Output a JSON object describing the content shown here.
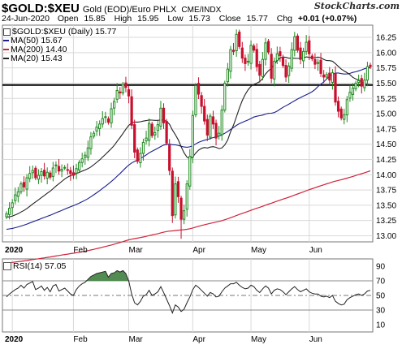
{
  "header": {
    "symbol": "$GOLD:$XEU",
    "description": "Gold (EOD)/Euro PHLX",
    "source": "CME/INDX",
    "brand": "StockCharts.com",
    "date": "24-Jun-2020",
    "open_label": "Open",
    "open_value": "15.85",
    "high_label": "High",
    "high_value": "15.95",
    "low_label": "Low",
    "low_value": "15.73",
    "close_label": "Close",
    "close_value": "15.77",
    "chg_label": "Chg",
    "chg_value": "+0.01 (+0.07%)"
  },
  "legend": {
    "price": "$GOLD:$XEU (Daily) 15.77",
    "ma50": "MA(50) 15.67",
    "ma200": "MA(200) 14.40",
    "ma20": "MA(20) 15.43",
    "rsi": "RSI(14) 57.05"
  },
  "colors": {
    "up": "#1e8a1e",
    "down": "#c8102e",
    "ma50": "#1a1f8a",
    "ma200": "#d0223a",
    "ma20": "#222222",
    "rsi_fill": "#3f7f3f",
    "grid": "#d9d9d9"
  },
  "chart_data": [
    {
      "type": "candlestick",
      "title": "$GOLD:$XEU",
      "x_labels": [
        "2020",
        "Feb",
        "Mar",
        "Apr",
        "May",
        "Jun"
      ],
      "y_ticks": [
        "16.25",
        "16.00",
        "15.75",
        "15.50",
        "15.25",
        "15.00",
        "14.75",
        "14.50",
        "14.25",
        "14.00",
        "13.75",
        "13.50",
        "13.25",
        "13.00"
      ],
      "ylim": [
        12.9,
        16.45
      ],
      "horizontal_line": 15.47,
      "closes": [
        13.36,
        13.45,
        13.54,
        13.67,
        13.72,
        13.85,
        13.8,
        13.95,
        14.02,
        14.07,
        13.95,
        13.99,
        14.05,
        13.98,
        14.04,
        13.96,
        14.11,
        14.16,
        14.06,
        14.09,
        14.12,
        14.08,
        14.02,
        13.99,
        14.1,
        14.2,
        14.26,
        14.32,
        14.44,
        14.62,
        14.68,
        14.78,
        14.83,
        14.92,
        14.95,
        14.86,
        15.08,
        15.2,
        15.38,
        15.34,
        15.48,
        15.43,
        15.29,
        14.81,
        14.37,
        14.22,
        14.35,
        14.53,
        14.6,
        14.84,
        14.64,
        14.69,
        14.82,
        15.09,
        14.85,
        14.52,
        14.07,
        13.33,
        13.85,
        13.64,
        13.27,
        13.41,
        13.85,
        14.3,
        14.97,
        15.46,
        15.32,
        15.12,
        14.88,
        14.65,
        14.96,
        14.83,
        14.6,
        14.68,
        15.06,
        15.5,
        15.73,
        16.05,
        16.02,
        16.3,
        16.1,
        15.91,
        15.82,
        15.86,
        16.12,
        16.04,
        15.77,
        15.63,
        15.89,
        16.16,
        16.01,
        15.58,
        15.86,
        15.98,
        15.95,
        15.79,
        15.6,
        15.78,
        16.05,
        16.26,
        16.04,
        15.89,
        16.02,
        16.17,
        15.98,
        15.9,
        15.81,
        15.84,
        15.66,
        15.6,
        15.64,
        15.55,
        15.67,
        15.19,
        15.04,
        14.93,
        14.98,
        15.23,
        15.35,
        15.42,
        15.5,
        15.54,
        15.45,
        15.55,
        15.77,
        15.77
      ],
      "rsi": {
        "name": "RSI(14)",
        "levels": [
          70,
          50,
          30
        ],
        "y_ticks": [
          "90",
          "70",
          "50",
          "30",
          "10"
        ],
        "ylim": [
          0,
          100
        ],
        "values": [
          48,
          52,
          55,
          58,
          60,
          64,
          60,
          65,
          67,
          69,
          58,
          60,
          63,
          57,
          61,
          55,
          63,
          65,
          56,
          58,
          60,
          56,
          52,
          50,
          58,
          63,
          66,
          68,
          72,
          76,
          78,
          80,
          81,
          82,
          83,
          75,
          80,
          81,
          84,
          82,
          84,
          80,
          70,
          52,
          40,
          37,
          42,
          49,
          51,
          57,
          50,
          52,
          55,
          62,
          54,
          45,
          36,
          26,
          37,
          34,
          28,
          31,
          40,
          48,
          58,
          64,
          61,
          57,
          53,
          49,
          54,
          52,
          48,
          49,
          55,
          60,
          63,
          66,
          66,
          68,
          64,
          61,
          59,
          60,
          64,
          62,
          57,
          54,
          59,
          63,
          60,
          52,
          57,
          59,
          58,
          55,
          51,
          55,
          59,
          62,
          58,
          55,
          57,
          59,
          55,
          53,
          52,
          52,
          49,
          48,
          49,
          47,
          50,
          42,
          39,
          37,
          38,
          44,
          47,
          49,
          51,
          52,
          50,
          52,
          56,
          57
        ]
      }
    }
  ]
}
